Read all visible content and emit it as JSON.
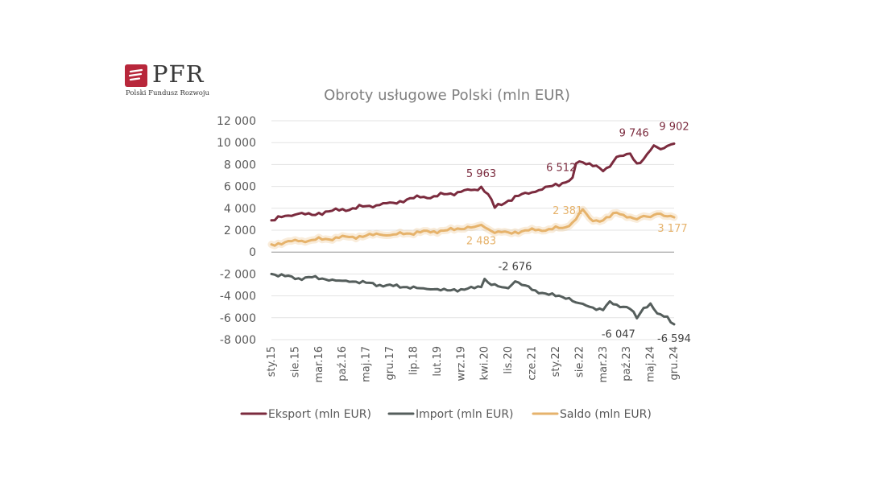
{
  "logo": {
    "name": "PFR",
    "subtitle": "Polski Fundusz Rozwoju"
  },
  "colors": {
    "export": "#7b2b3e",
    "import": "#555e5c",
    "saldo": "#e6b36c",
    "grid": "#e3e3e3"
  },
  "chart_data": {
    "type": "line",
    "title": "Obroty usługowe Polski (mln EUR)",
    "ylim": [
      -8000,
      12000
    ],
    "yticks": [
      "12 000",
      "10 000",
      "8 000",
      "6 000",
      "4 000",
      "2 000",
      "0",
      "-2 000",
      "-4 000",
      "-6 000",
      "-8 000"
    ],
    "x_start": "2015-01",
    "x_end": "2024-12",
    "xticks": [
      "sty.15",
      "sie.15",
      "mar.16",
      "paź.16",
      "maj.17",
      "gru.17",
      "lip.18",
      "lut.19",
      "wrz.19",
      "kwi.20",
      "lis.20",
      "cze.21",
      "sty.22",
      "sie.22",
      "mar.23",
      "paź.23",
      "maj.24",
      "gru.24"
    ],
    "grid": true,
    "legend_position": "bottom",
    "series": [
      {
        "name": "Eksport (mln EUR)",
        "anchors": [
          [
            0,
            2900
          ],
          [
            4,
            3300
          ],
          [
            8,
            3500
          ],
          [
            12,
            3400
          ],
          [
            16,
            3700
          ],
          [
            20,
            3800
          ],
          [
            24,
            4000
          ],
          [
            28,
            4200
          ],
          [
            32,
            4300
          ],
          [
            36,
            4500
          ],
          [
            40,
            4800
          ],
          [
            44,
            5000
          ],
          [
            48,
            5100
          ],
          [
            52,
            5300
          ],
          [
            56,
            5500
          ],
          [
            60,
            5700
          ],
          [
            62,
            5963
          ],
          [
            64,
            5300
          ],
          [
            66,
            4050
          ],
          [
            70,
            4700
          ],
          [
            74,
            5300
          ],
          [
            78,
            5500
          ],
          [
            82,
            6000
          ],
          [
            86,
            6300
          ],
          [
            88,
            6512
          ],
          [
            89,
            6800
          ],
          [
            90,
            8100
          ],
          [
            92,
            8200
          ],
          [
            94,
            8100
          ],
          [
            96,
            7900
          ],
          [
            98,
            7400
          ],
          [
            100,
            7800
          ],
          [
            102,
            8700
          ],
          [
            104,
            8800
          ],
          [
            106,
            9000
          ],
          [
            108,
            8100
          ],
          [
            110,
            8500
          ],
          [
            112,
            9300
          ],
          [
            113,
            9746
          ],
          [
            115,
            9400
          ],
          [
            117,
            9700
          ],
          [
            119,
            9902
          ]
        ]
      },
      {
        "name": "Import (mln EUR)",
        "anchors": [
          [
            0,
            -2000
          ],
          [
            4,
            -2200
          ],
          [
            8,
            -2400
          ],
          [
            12,
            -2300
          ],
          [
            16,
            -2500
          ],
          [
            20,
            -2600
          ],
          [
            24,
            -2700
          ],
          [
            28,
            -2800
          ],
          [
            32,
            -3000
          ],
          [
            36,
            -3100
          ],
          [
            40,
            -3200
          ],
          [
            44,
            -3300
          ],
          [
            48,
            -3400
          ],
          [
            52,
            -3500
          ],
          [
            56,
            -3400
          ],
          [
            60,
            -3300
          ],
          [
            62,
            -3200
          ],
          [
            63,
            -2450
          ],
          [
            65,
            -3000
          ],
          [
            68,
            -3200
          ],
          [
            70,
            -3300
          ],
          [
            72,
            -2676
          ],
          [
            74,
            -3000
          ],
          [
            78,
            -3500
          ],
          [
            82,
            -3900
          ],
          [
            86,
            -4100
          ],
          [
            88,
            -4200
          ],
          [
            90,
            -4600
          ],
          [
            94,
            -5000
          ],
          [
            98,
            -5300
          ],
          [
            100,
            -4500
          ],
          [
            102,
            -4800
          ],
          [
            104,
            -5000
          ],
          [
            106,
            -5200
          ],
          [
            108,
            -6047
          ],
          [
            110,
            -5100
          ],
          [
            112,
            -4700
          ],
          [
            114,
            -5600
          ],
          [
            116,
            -5900
          ],
          [
            117,
            -5900
          ],
          [
            119,
            -6594
          ]
        ]
      },
      {
        "name": "Saldo (mln EUR)",
        "anchors": [
          [
            0,
            700
          ],
          [
            4,
            900
          ],
          [
            8,
            1000
          ],
          [
            12,
            1100
          ],
          [
            16,
            1200
          ],
          [
            20,
            1300
          ],
          [
            24,
            1400
          ],
          [
            28,
            1500
          ],
          [
            32,
            1600
          ],
          [
            36,
            1600
          ],
          [
            40,
            1700
          ],
          [
            44,
            1800
          ],
          [
            48,
            1900
          ],
          [
            52,
            2000
          ],
          [
            56,
            2100
          ],
          [
            58,
            2300
          ],
          [
            60,
            2300
          ],
          [
            62,
            2483
          ],
          [
            64,
            2100
          ],
          [
            66,
            1750
          ],
          [
            70,
            1800
          ],
          [
            74,
            1900
          ],
          [
            78,
            2000
          ],
          [
            82,
            2100
          ],
          [
            86,
            2200
          ],
          [
            88,
            2381
          ],
          [
            90,
            3000
          ],
          [
            92,
            3900
          ],
          [
            94,
            3100
          ],
          [
            96,
            2900
          ],
          [
            98,
            2900
          ],
          [
            100,
            3200
          ],
          [
            102,
            3600
          ],
          [
            104,
            3400
          ],
          [
            106,
            3200
          ],
          [
            108,
            3000
          ],
          [
            110,
            3300
          ],
          [
            112,
            3200
          ],
          [
            114,
            3500
          ],
          [
            116,
            3300
          ],
          [
            118,
            3300
          ],
          [
            119,
            3177
          ]
        ]
      }
    ],
    "annotations": [
      {
        "series": 0,
        "x": 62,
        "text": "5 963"
      },
      {
        "series": 0,
        "x": 88,
        "text": "6 512"
      },
      {
        "series": 0,
        "x": 113,
        "text": "9 746"
      },
      {
        "series": 0,
        "x": 119,
        "text": "9 902"
      },
      {
        "series": 2,
        "x": 62,
        "text": "2 483"
      },
      {
        "series": 2,
        "x": 88,
        "text": "2 381"
      },
      {
        "series": 2,
        "x": 119,
        "text": "3 177"
      },
      {
        "series": 1,
        "x": 72,
        "text": "-2 676"
      },
      {
        "series": 1,
        "x": 108,
        "text": "-6 047"
      },
      {
        "series": 1,
        "x": 119,
        "text": "-6 594"
      }
    ]
  }
}
